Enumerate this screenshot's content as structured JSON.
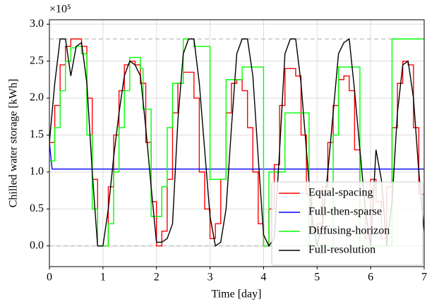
{
  "chart_data": {
    "type": "line",
    "xlabel": "Time [day]",
    "ylabel": "Chilled water storage [kWh]",
    "y_multiplier": "×10⁵",
    "xlim": [
      0,
      7
    ],
    "xticks": [
      0,
      1,
      2,
      3,
      4,
      5,
      6,
      7
    ],
    "ylim": [
      -0.28,
      3.06
    ],
    "yticks": [
      {
        "value": 0,
        "label": "0.0"
      },
      0.5,
      {
        "value": 1,
        "label": "1.0"
      },
      1.5,
      {
        "value": 2,
        "label": "2.0"
      },
      2.5,
      {
        "value": 3,
        "label": "3.0"
      }
    ],
    "grid": true,
    "legend": "lower right",
    "reference_lines": [
      0,
      2.8
    ],
    "reference_color": "#bbbbbb",
    "series": [
      {
        "name": "Equal-spacing",
        "color": "#ff0000",
        "step": "post",
        "x": [
          0,
          0.1,
          0.2,
          0.3,
          0.4,
          0.5,
          0.6,
          0.7,
          0.8,
          0.9,
          1,
          1.1,
          1.2,
          1.3,
          1.4,
          1.5,
          1.6,
          1.7,
          1.8,
          1.9,
          2,
          2.1,
          2.2,
          2.3,
          2.4,
          2.5,
          2.6,
          2.7,
          2.8,
          2.9,
          3,
          3.1,
          3.2,
          3.3,
          3.4,
          3.5,
          3.6,
          3.7,
          3.8,
          3.9,
          4,
          4.1,
          4.2,
          4.3,
          4.4,
          4.5,
          4.6,
          4.7,
          4.8,
          4.9,
          5,
          5.1,
          5.2,
          5.3,
          5.4,
          5.5,
          5.6,
          5.7,
          5.8,
          5.9,
          6,
          6.1,
          6.2,
          6.3,
          6.4,
          6.5,
          6.6,
          6.7,
          6.8,
          6.9,
          7
        ],
        "values": [
          1.4,
          1.9,
          2.45,
          2.7,
          2.8,
          2.8,
          2.7,
          2.0,
          0.9,
          0.0,
          0.0,
          0.8,
          1.5,
          2.1,
          2.45,
          2.5,
          2.45,
          2.2,
          1.4,
          0.6,
          0.0,
          0.2,
          0.9,
          1.8,
          2.2,
          2.35,
          2.35,
          2.0,
          1.0,
          0.5,
          0.1,
          0.3,
          0.9,
          1.8,
          2.2,
          2.25,
          2.1,
          1.6,
          1.0,
          0.3,
          0.0,
          0.5,
          1.1,
          1.9,
          2.4,
          2.4,
          2.3,
          1.5,
          0.7,
          0.2,
          0.3,
          0.8,
          1.4,
          1.9,
          2.25,
          2.3,
          2.1,
          1.3,
          0.5,
          0.1,
          0.9,
          0.6,
          0.1,
          0.8,
          1.6,
          2.2,
          2.5,
          2.45,
          1.6,
          0.7,
          0.35
        ]
      },
      {
        "name": "Full-then-sparse",
        "color": "#0000ff",
        "x": [
          0,
          0.05,
          7
        ],
        "values": [
          1.4,
          1.04,
          1.04
        ]
      },
      {
        "name": "Diffusing-horizon",
        "color": "#00ff00",
        "step": "post",
        "x": [
          0,
          0.1,
          0.2,
          0.3,
          0.4,
          0.5,
          0.6,
          0.7,
          0.8,
          0.9,
          1.1,
          1.2,
          1.3,
          1.4,
          1.5,
          1.7,
          1.75,
          1.9,
          2.1,
          2.2,
          2.3,
          2.5,
          2.7,
          3.0,
          3.3,
          3.6,
          4.0,
          4.1,
          4.4,
          4.85,
          5.3,
          5.4,
          5.8,
          6.4,
          7.0
        ],
        "values": [
          1.15,
          1.6,
          2.1,
          2.5,
          2.68,
          2.7,
          2.6,
          1.5,
          0.5,
          0.0,
          0.3,
          1.0,
          1.6,
          2.1,
          2.55,
          2.4,
          1.85,
          0.4,
          0.8,
          1.6,
          2.2,
          2.8,
          2.7,
          0.9,
          2.25,
          2.42,
          0.0,
          1.0,
          1.8,
          0.0,
          1.5,
          2.42,
          0.0,
          2.8,
          2.8
        ]
      },
      {
        "name": "Full-resolution",
        "color": "#000000",
        "x": [
          0,
          0.1,
          0.2,
          0.3,
          0.4,
          0.5,
          0.6,
          0.7,
          0.8,
          0.9,
          1,
          1.1,
          1.2,
          1.3,
          1.4,
          1.5,
          1.6,
          1.7,
          1.8,
          1.9,
          2,
          2.1,
          2.2,
          2.3,
          2.4,
          2.5,
          2.6,
          2.7,
          2.8,
          2.9,
          3,
          3.1,
          3.2,
          3.3,
          3.4,
          3.5,
          3.6,
          3.7,
          3.8,
          3.9,
          4,
          4.1,
          4.2,
          4.3,
          4.4,
          4.5,
          4.6,
          4.7,
          4.8,
          4.9,
          5,
          5.1,
          5.2,
          5.3,
          5.4,
          5.5,
          5.6,
          5.7,
          5.8,
          5.9,
          6,
          6.1,
          6.2,
          6.3,
          6.4,
          6.5,
          6.6,
          6.7,
          6.8,
          6.9,
          7
        ],
        "values": [
          1.4,
          2.2,
          2.8,
          2.8,
          2.3,
          2.7,
          2.75,
          2.2,
          1.0,
          0.0,
          0.0,
          0.5,
          1.2,
          1.8,
          2.3,
          2.5,
          2.45,
          2.3,
          1.6,
          0.8,
          0.05,
          0.05,
          0.1,
          0.3,
          1.7,
          2.6,
          2.8,
          2.8,
          2.2,
          1.3,
          0.4,
          0.0,
          0.05,
          0.5,
          1.6,
          2.6,
          2.8,
          2.8,
          2.3,
          1.2,
          0.15,
          0.0,
          0.1,
          1.3,
          2.6,
          2.8,
          2.8,
          2.2,
          1.3,
          0.4,
          0.0,
          0.3,
          1.0,
          1.8,
          2.6,
          2.75,
          2.8,
          2.1,
          1.3,
          0.5,
          0.0,
          1.3,
          0.9,
          0.0,
          0.6,
          1.8,
          2.45,
          2.5,
          2.0,
          1.0,
          0.2
        ]
      }
    ]
  }
}
